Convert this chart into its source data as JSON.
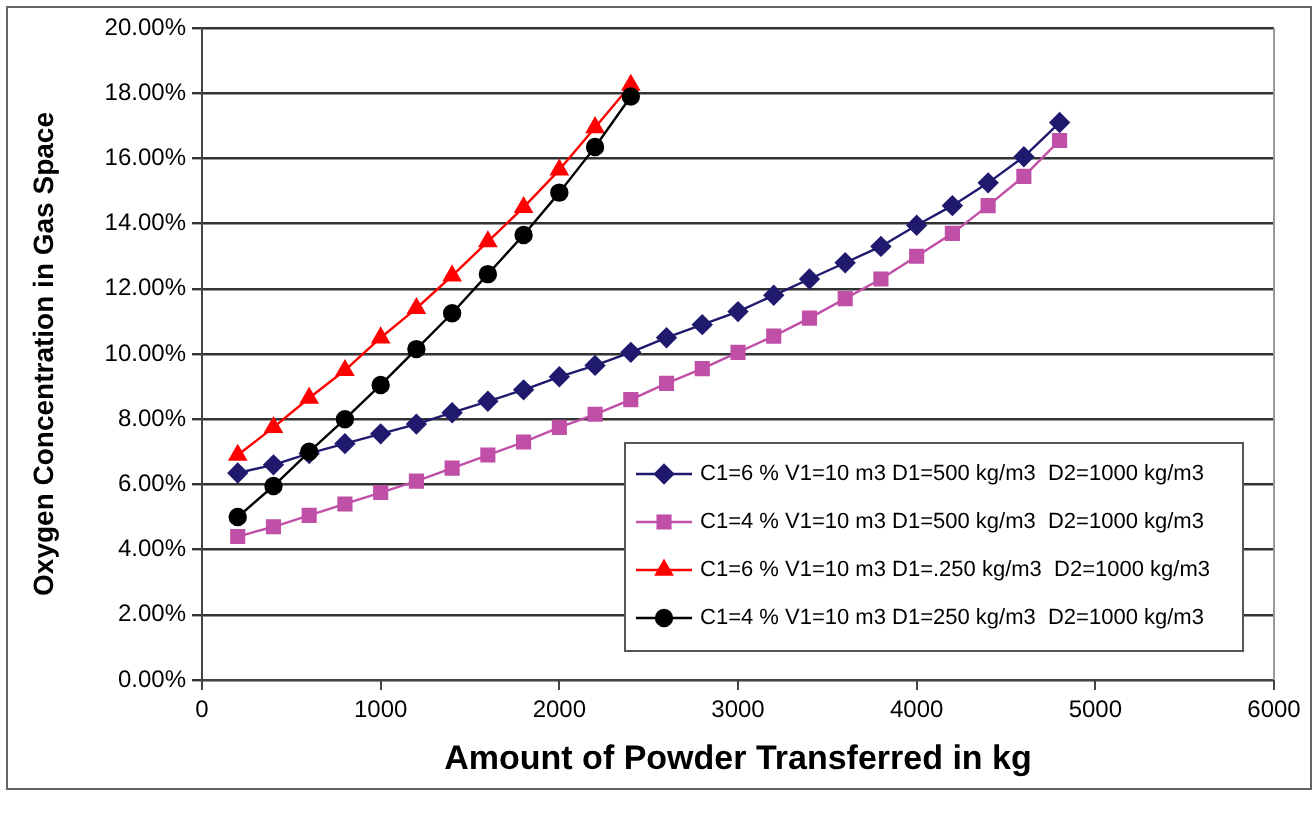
{
  "chart_data": {
    "type": "line",
    "xlabel": "Amount of Powder Transferred in kg",
    "ylabel": "Oxygen Concentration in Gas Space",
    "xlim": [
      0,
      6000
    ],
    "xticks": [
      0,
      1000,
      2000,
      3000,
      4000,
      5000,
      6000
    ],
    "ylim": [
      0,
      20
    ],
    "yticks": [
      {
        "value": 0,
        "label": "0.00%"
      },
      {
        "value": 2,
        "label": "2.00%"
      },
      {
        "value": 4,
        "label": "4.00%"
      },
      {
        "value": 6,
        "label": "6.00%"
      },
      {
        "value": 8,
        "label": "8.00%"
      },
      {
        "value": 10,
        "label": "10.00%"
      },
      {
        "value": 12,
        "label": "12.00%"
      },
      {
        "value": 14,
        "label": "14.00%"
      },
      {
        "value": 16,
        "label": "16.00%"
      },
      {
        "value": 18,
        "label": "18.00%"
      },
      {
        "value": 20,
        "label": "20.00%"
      }
    ],
    "grid": "y",
    "legend": "bottom right",
    "line_style": "solid",
    "series": [
      {
        "name": "C1=6 % V1=10 m3 D1=500 kg/m3  D2=1000 kg/m3",
        "color": "#1f1a6e",
        "marker": "diamond",
        "x": [
          200,
          400,
          600,
          800,
          1000,
          1200,
          1400,
          1600,
          1800,
          2000,
          2200,
          2400,
          2600,
          2800,
          3000,
          3200,
          3400,
          3600,
          3800,
          4000,
          4200,
          4400,
          4600,
          4800
        ],
        "values": [
          6.35,
          6.6,
          6.95,
          7.25,
          7.55,
          7.85,
          8.2,
          8.55,
          8.9,
          9.3,
          9.65,
          10.05,
          10.5,
          10.9,
          11.3,
          11.8,
          12.3,
          12.8,
          13.3,
          13.95,
          14.55,
          15.25,
          16.05,
          17.1
        ]
      },
      {
        "name": "C1=4 % V1=10 m3 D1=500 kg/m3  D2=1000 kg/m3",
        "color": "#c04fa8",
        "marker": "square",
        "x": [
          200,
          400,
          600,
          800,
          1000,
          1200,
          1400,
          1600,
          1800,
          2000,
          2200,
          2400,
          2600,
          2800,
          3000,
          3200,
          3400,
          3600,
          3800,
          4000,
          4200,
          4400,
          4600,
          4800
        ],
        "values": [
          4.4,
          4.7,
          5.05,
          5.4,
          5.75,
          6.1,
          6.5,
          6.9,
          7.3,
          7.75,
          8.15,
          8.6,
          9.1,
          9.55,
          10.05,
          10.55,
          11.1,
          11.7,
          12.3,
          13,
          13.7,
          14.55,
          15.45,
          16.55
        ]
      },
      {
        "name": "C1=6 % V1=10 m3 D1=.250 kg/m3  D2=1000 kg/m3",
        "color": "#ff0000",
        "marker": "triangle",
        "x": [
          200,
          400,
          600,
          800,
          1000,
          1200,
          1400,
          1600,
          1800,
          2000,
          2200,
          2400
        ],
        "values": [
          6.9,
          7.75,
          8.65,
          9.5,
          10.5,
          11.4,
          12.4,
          13.45,
          14.5,
          15.65,
          16.95,
          18.25
        ]
      },
      {
        "name": "C1=4 % V1=10 m3 D1=250 kg/m3  D2=1000 kg/m3",
        "color": "#000000",
        "marker": "circle",
        "x": [
          200,
          400,
          600,
          800,
          1000,
          1200,
          1400,
          1600,
          1800,
          2000,
          2200,
          2400
        ],
        "values": [
          5,
          5.95,
          7,
          8,
          9.05,
          10.15,
          11.25,
          12.45,
          13.65,
          14.95,
          16.35,
          17.9
        ]
      }
    ]
  }
}
